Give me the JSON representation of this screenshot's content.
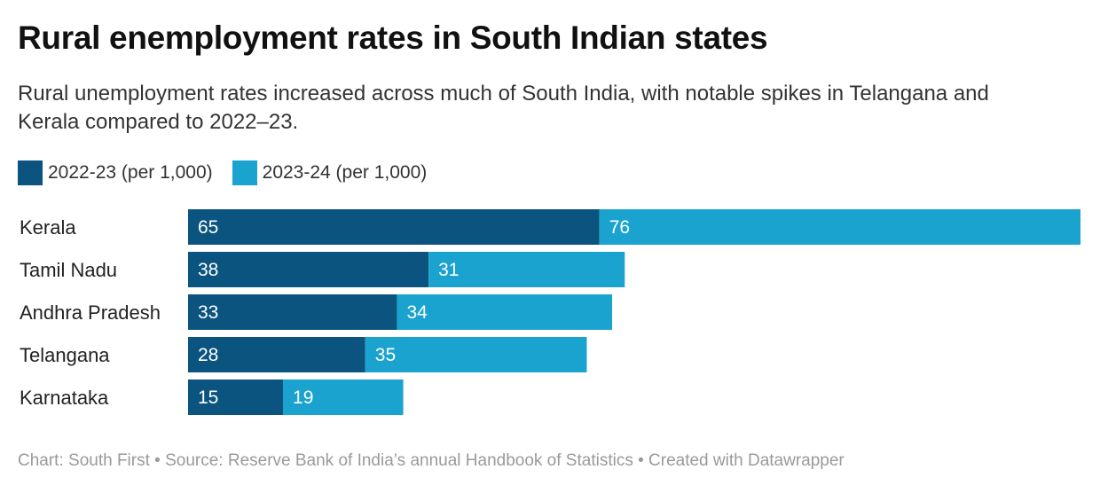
{
  "title": "Rural enemployment rates in South Indian states",
  "subtitle": "Rural unemployment rates increased across much of South India, with notable spikes in Telangana and Kerala compared to 2022–23.",
  "footer": "Chart: South First • Source: Reserve Bank of India’s annual Handbook of Statistics • Created with Datawrapper",
  "colors": {
    "series_2022_23": "#0b5480",
    "series_2023_24": "#1ba3d0"
  },
  "chart_data": {
    "type": "bar",
    "orientation": "horizontal",
    "stacked": true,
    "title": "Rural enemployment rates in South Indian states",
    "subtitle": "Rural unemployment rates increased across much of South India, with notable spikes in Telangana and Kerala compared to 2022–23.",
    "categories": [
      "Kerala",
      "Tamil Nadu",
      "Andhra Pradesh",
      "Telangana",
      "Karnataka"
    ],
    "series": [
      {
        "name": "2022-23 (per 1,000)",
        "values": [
          65,
          38,
          33,
          28,
          15
        ]
      },
      {
        "name": "2023-24 (per 1,000)",
        "values": [
          76,
          31,
          34,
          35,
          19
        ]
      }
    ],
    "xlabel": "",
    "ylabel": "",
    "xlim": [
      0,
      141
    ],
    "grid": false,
    "legend_position": "top-left",
    "data_labels": true
  }
}
